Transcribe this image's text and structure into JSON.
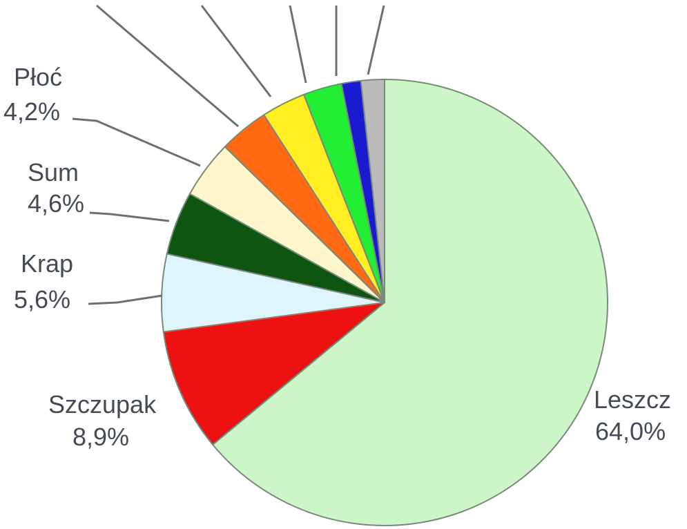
{
  "chart_data": {
    "type": "pie",
    "title": "",
    "slices": [
      {
        "label": "Leszcz",
        "value": 64.0,
        "value_text": "64,0%",
        "color": "#ccf5c8"
      },
      {
        "label": "Szczupak",
        "value": 8.9,
        "value_text": "8,9%",
        "color": "#ee1111"
      },
      {
        "label": "Krap",
        "value": 5.6,
        "value_text": "5,6%",
        "color": "#ddf5fb"
      },
      {
        "label": "Sum",
        "value": 4.6,
        "value_text": "4,6%",
        "color": "#0f5512"
      },
      {
        "label": "Płoć",
        "value": 4.2,
        "value_text": "4,2%",
        "color": "#fff6cc"
      },
      {
        "label": "",
        "value": 3.6,
        "value_text": "",
        "color": "#ff6a12"
      },
      {
        "label": "",
        "value": 3.2,
        "value_text": "",
        "color": "#ffee22"
      },
      {
        "label": "",
        "value": 2.8,
        "value_text": "",
        "color": "#22ee33"
      },
      {
        "label": "",
        "value": 1.4,
        "value_text": "",
        "color": "#1a1ad0"
      },
      {
        "label": "",
        "value": 1.7,
        "value_text": "",
        "color": "#bbbbbb"
      }
    ],
    "start": "top",
    "direction": "clockwise",
    "legend": "none",
    "outline_color": "#7a8a7a"
  }
}
